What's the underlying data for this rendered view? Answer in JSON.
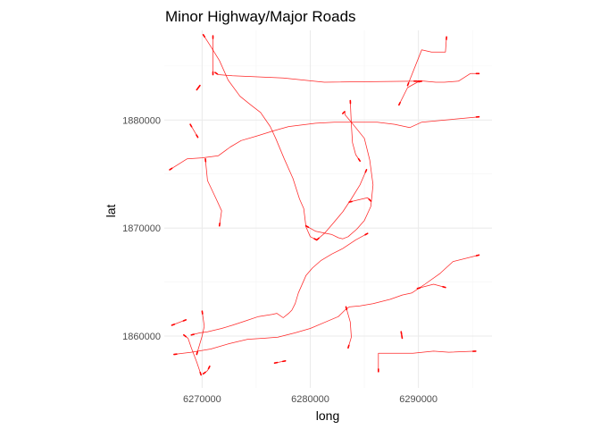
{
  "chart_data": {
    "type": "line",
    "title": "Minor Highway/Major Roads",
    "xlabel": "long",
    "ylabel": "lat",
    "xlim": [
      6266500,
      6296800
    ],
    "ylim": [
      1855200,
      1888300
    ],
    "x_ticks": [
      6270000,
      6280000,
      6290000
    ],
    "x_tick_labels": [
      "6270000",
      "6280000",
      "6290000"
    ],
    "y_ticks": [
      1860000,
      1870000,
      1880000
    ],
    "y_tick_labels": [
      "1860000",
      "1870000",
      "1880000"
    ],
    "grid": true,
    "legend": "none",
    "line_color": "#ff0000",
    "series": [
      {
        "x": [
          6271200,
          6271500,
          6272800,
          6277500,
          6281300,
          6290200
        ],
        "y": [
          1884400,
          1884200,
          1884100,
          1883900,
          1883500,
          1883600
        ]
      },
      {
        "x": [
          6271000,
          6271000,
          6271000,
          6271000
        ],
        "y": [
          1887800,
          1886300,
          1885000,
          1884200
        ]
      },
      {
        "x": [
          6289600,
          6290500,
          6291600,
          6292400,
          6293700,
          6294800,
          6295600
        ],
        "y": [
          1883600,
          1883600,
          1883500,
          1883500,
          1883600,
          1884300,
          1884300
        ]
      },
      {
        "x": [
          6289000,
          6290300,
          6291200,
          6292500,
          6292600
        ],
        "y": [
          1883200,
          1886500,
          1886300,
          1886300,
          1887700
        ]
      },
      {
        "x": [
          6288200,
          6289000,
          6289900,
          6290300
        ],
        "y": [
          1881400,
          1883000,
          1883500,
          1883600
        ]
      },
      {
        "x": [
          6267000,
          6268600,
          6270000,
          6271500,
          6272600,
          6273600,
          6275000,
          6276600,
          6278000,
          6280500,
          6282200,
          6286200,
          6287800,
          6289200,
          6290300,
          6292500,
          6295600
        ],
        "y": [
          1875400,
          1876400,
          1876500,
          1876700,
          1877500,
          1878100,
          1878500,
          1879000,
          1879400,
          1879700,
          1879800,
          1879800,
          1879600,
          1879300,
          1879800,
          1880000,
          1880300
        ]
      },
      {
        "x": [
          6270100,
          6270800,
          6271600,
          6272400,
          6273500,
          6274500,
          6275400,
          6276300,
          6276800,
          6277600,
          6278400,
          6279000,
          6279400,
          6279600,
          6280000,
          6280600
        ],
        "y": [
          1887900,
          1886800,
          1885500,
          1883700,
          1882200,
          1881400,
          1880700,
          1879400,
          1878300,
          1876400,
          1874600,
          1872700,
          1871800,
          1870100,
          1869200,
          1868900
        ]
      },
      {
        "x": [
          6280600,
          6281300,
          6282000,
          6283000,
          6283800,
          6284600,
          6285200
        ],
        "y": [
          1868900,
          1869500,
          1870300,
          1871500,
          1872700,
          1874000,
          1875400
        ]
      },
      {
        "x": [
          6283700,
          6283800,
          6283900,
          6284200,
          6284600
        ],
        "y": [
          1881800,
          1879600,
          1877900,
          1876800,
          1876200
        ]
      },
      {
        "x": [
          6279600,
          6280500,
          6281500,
          6282000,
          6282600,
          6283000,
          6283500,
          6284300,
          6285000,
          6285600,
          6285800,
          6285500,
          6285000,
          6283800,
          6283200,
          6283200,
          6283000
        ],
        "y": [
          1870200,
          1869700,
          1869500,
          1869400,
          1869100,
          1869000,
          1869200,
          1869900,
          1870700,
          1872000,
          1874000,
          1876300,
          1878300,
          1879800,
          1880500,
          1880800,
          1880600
        ]
      },
      {
        "x": [
          6283600,
          6284400,
          6285300,
          6285600
        ],
        "y": [
          1872400,
          1872600,
          1872800,
          1872500
        ]
      },
      {
        "x": [
          6270300,
          6270500,
          6271300,
          6271800,
          6271600
        ],
        "y": [
          1876400,
          1874400,
          1872700,
          1871600,
          1870200
        ]
      },
      {
        "x": [
          6269500,
          6270000,
          6270200,
          6270000
        ],
        "y": [
          1858300,
          1860000,
          1860900,
          1862300
        ]
      },
      {
        "x": [
          6269000,
          6269800,
          6270500,
          6271800,
          6272800,
          6274000,
          6275200,
          6276500,
          6276900,
          6277500,
          6278000,
          6278300,
          6278600,
          6278900,
          6279600,
          6280200,
          6281000,
          6282000,
          6283000,
          6284200,
          6285300
        ],
        "y": [
          1860100,
          1860300,
          1860400,
          1860700,
          1861000,
          1861400,
          1861800,
          1862000,
          1862100,
          1861700,
          1862100,
          1862400,
          1863000,
          1864000,
          1865600,
          1866300,
          1867000,
          1867600,
          1868100,
          1868900,
          1869500
        ]
      },
      {
        "x": [
          6267400,
          6269000,
          6270800,
          6272500,
          6274200,
          6275800,
          6277000,
          6278600,
          6280000,
          6281400,
          6282600,
          6283200,
          6283600,
          6284600,
          6285800,
          6287400,
          6288500,
          6289400,
          6290600,
          6292000,
          6293200,
          6295600
        ],
        "y": [
          1858300,
          1858500,
          1858800,
          1859300,
          1859700,
          1859800,
          1859900,
          1860300,
          1860700,
          1861300,
          1861800,
          1862400,
          1862700,
          1862800,
          1863000,
          1863400,
          1863800,
          1864000,
          1864800,
          1865800,
          1866900,
          1867500
        ]
      },
      {
        "x": [
          6289900,
          6291400,
          6292500
        ],
        "y": [
          1864400,
          1864800,
          1864500
        ]
      },
      {
        "x": [
          6283300,
          6283700,
          6283800,
          6283500
        ],
        "y": [
          1862700,
          1861300,
          1859900,
          1858900
        ]
      },
      {
        "x": [
          6286300,
          6286300,
          6288100,
          6289500,
          6291400,
          6292800,
          6295300
        ],
        "y": [
          1856700,
          1858400,
          1858400,
          1858400,
          1858600,
          1858500,
          1858600
        ]
      },
      {
        "x": [
          6288400,
          6288500
        ],
        "y": [
          1860400,
          1859800
        ]
      },
      {
        "x": [
          6267200,
          6268500
        ],
        "y": [
          1861000,
          1861500
        ]
      },
      {
        "x": [
          6268300,
          6268700,
          6269000,
          6269500,
          6269900
        ],
        "y": [
          1860100,
          1859800,
          1858900,
          1857600,
          1856400
        ]
      },
      {
        "x": [
          6270100,
          6270500,
          6270700
        ],
        "y": [
          1856500,
          1856800,
          1857200
        ]
      },
      {
        "x": [
          6276700,
          6277700
        ],
        "y": [
          1857500,
          1857700
        ]
      },
      {
        "x": [
          6269500,
          6269800
        ],
        "y": [
          1882800,
          1883200
        ]
      },
      {
        "x": [
          6268900,
          6269600
        ],
        "y": [
          1879600,
          1878400
        ]
      }
    ]
  }
}
